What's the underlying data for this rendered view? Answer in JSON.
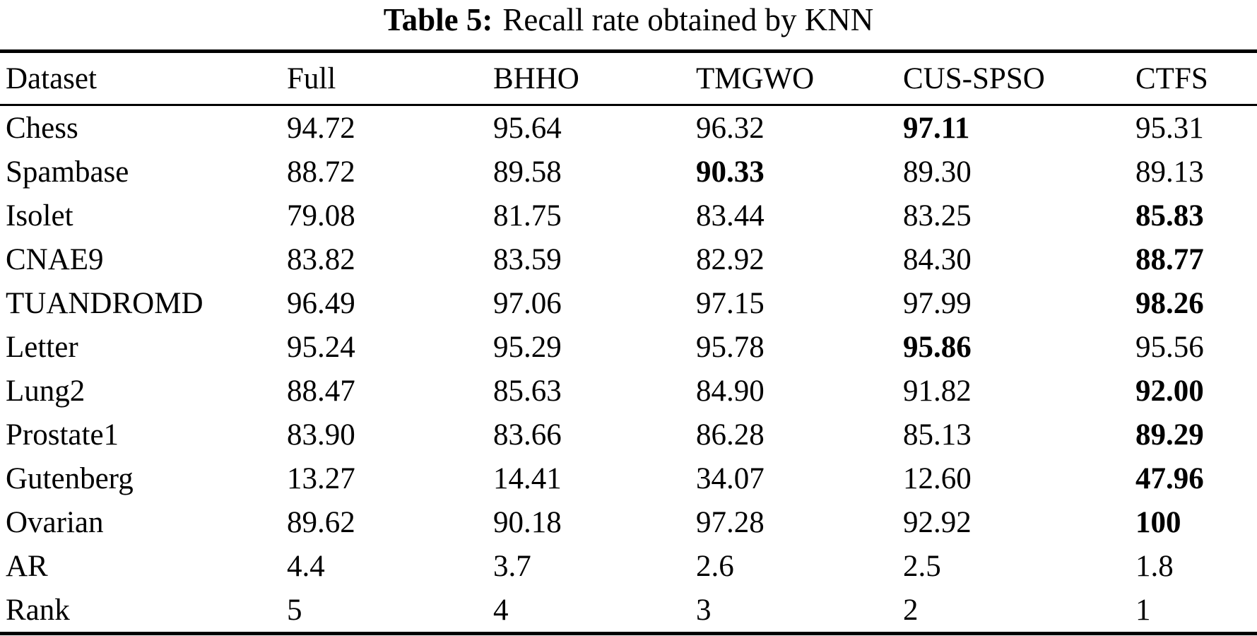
{
  "caption": {
    "label": "Table 5:",
    "text": "Recall rate obtained by KNN"
  },
  "table": {
    "columns": [
      "Dataset",
      "Full",
      "BHHO",
      "TMGWO",
      "CUS-SPSO",
      "CTFS"
    ],
    "rows": [
      {
        "dataset": "Chess",
        "values": [
          "94.72",
          "95.64",
          "96.32",
          "97.11",
          "95.31"
        ],
        "bold": [
          3
        ]
      },
      {
        "dataset": "Spambase",
        "values": [
          "88.72",
          "89.58",
          "90.33",
          "89.30",
          "89.13"
        ],
        "bold": [
          2
        ]
      },
      {
        "dataset": "Isolet",
        "values": [
          "79.08",
          "81.75",
          "83.44",
          "83.25",
          "85.83"
        ],
        "bold": [
          4
        ]
      },
      {
        "dataset": "CNAE9",
        "values": [
          "83.82",
          "83.59",
          "82.92",
          "84.30",
          "88.77"
        ],
        "bold": [
          4
        ]
      },
      {
        "dataset": "TUANDROMD",
        "values": [
          "96.49",
          "97.06",
          "97.15",
          "97.99",
          "98.26"
        ],
        "bold": [
          4
        ]
      },
      {
        "dataset": "Letter",
        "values": [
          "95.24",
          "95.29",
          "95.78",
          "95.86",
          "95.56"
        ],
        "bold": [
          3
        ]
      },
      {
        "dataset": "Lung2",
        "values": [
          "88.47",
          "85.63",
          "84.90",
          "91.82",
          "92.00"
        ],
        "bold": [
          4
        ]
      },
      {
        "dataset": "Prostate1",
        "values": [
          "83.90",
          "83.66",
          "86.28",
          "85.13",
          "89.29"
        ],
        "bold": [
          4
        ]
      },
      {
        "dataset": "Gutenberg",
        "values": [
          "13.27",
          "14.41",
          "34.07",
          "12.60",
          "47.96"
        ],
        "bold": [
          4
        ]
      },
      {
        "dataset": "Ovarian",
        "values": [
          "89.62",
          "90.18",
          "97.28",
          "92.92",
          "100"
        ],
        "bold": [
          4
        ]
      },
      {
        "dataset": "AR",
        "values": [
          "4.4",
          "3.7",
          "2.6",
          "2.5",
          "1.8"
        ],
        "bold": []
      },
      {
        "dataset": "Rank",
        "values": [
          "5",
          "4",
          "3",
          "2",
          "1"
        ],
        "bold": []
      }
    ]
  }
}
